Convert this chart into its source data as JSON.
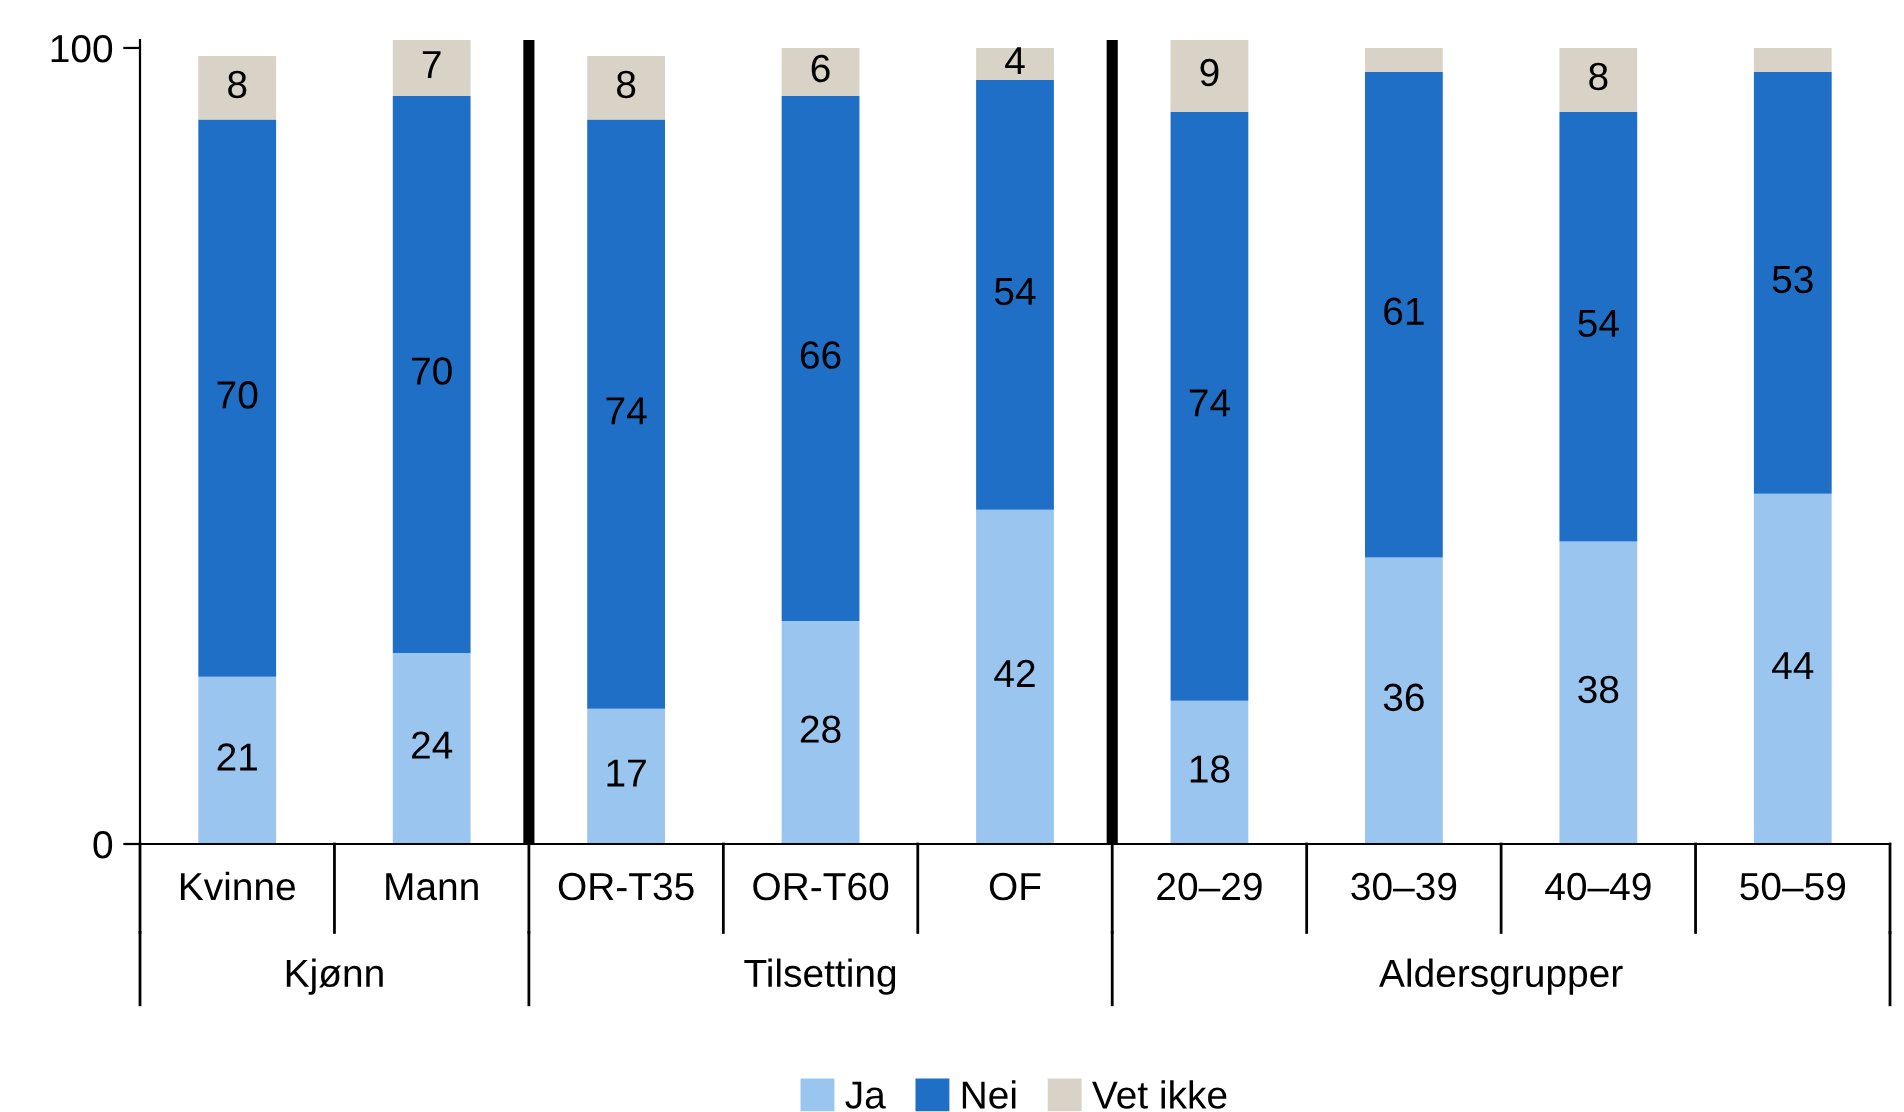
{
  "chart_data": {
    "type": "bar",
    "stacked": true,
    "categories": [
      "Kvinne",
      "Mann",
      "OR-T35",
      "OR-T60",
      "OF",
      "20–29",
      "30–39",
      "40–49",
      "50–59"
    ],
    "series": [
      {
        "name": "Ja",
        "color": "#9ac5ee",
        "values": [
          21,
          24,
          17,
          28,
          42,
          18,
          36,
          38,
          44
        ]
      },
      {
        "name": "Nei",
        "color": "#1f6fc6",
        "values": [
          70,
          70,
          74,
          66,
          54,
          74,
          61,
          54,
          53
        ]
      },
      {
        "name": "Vet ikke",
        "color": "#d9d3c7",
        "values": [
          8,
          7,
          8,
          6,
          4,
          9,
          3,
          8,
          3
        ],
        "value_labels": [
          "8",
          "7",
          "8",
          "6",
          "4",
          "9",
          null,
          "8",
          null
        ]
      }
    ],
    "ylim": [
      0,
      101
    ],
    "yticks": [
      0,
      100
    ],
    "grid": false,
    "legend": "bottom",
    "data_labels": true,
    "annotations": [
      "Kjønn",
      "Tilsetting",
      "Aldersgrupper"
    ]
  }
}
